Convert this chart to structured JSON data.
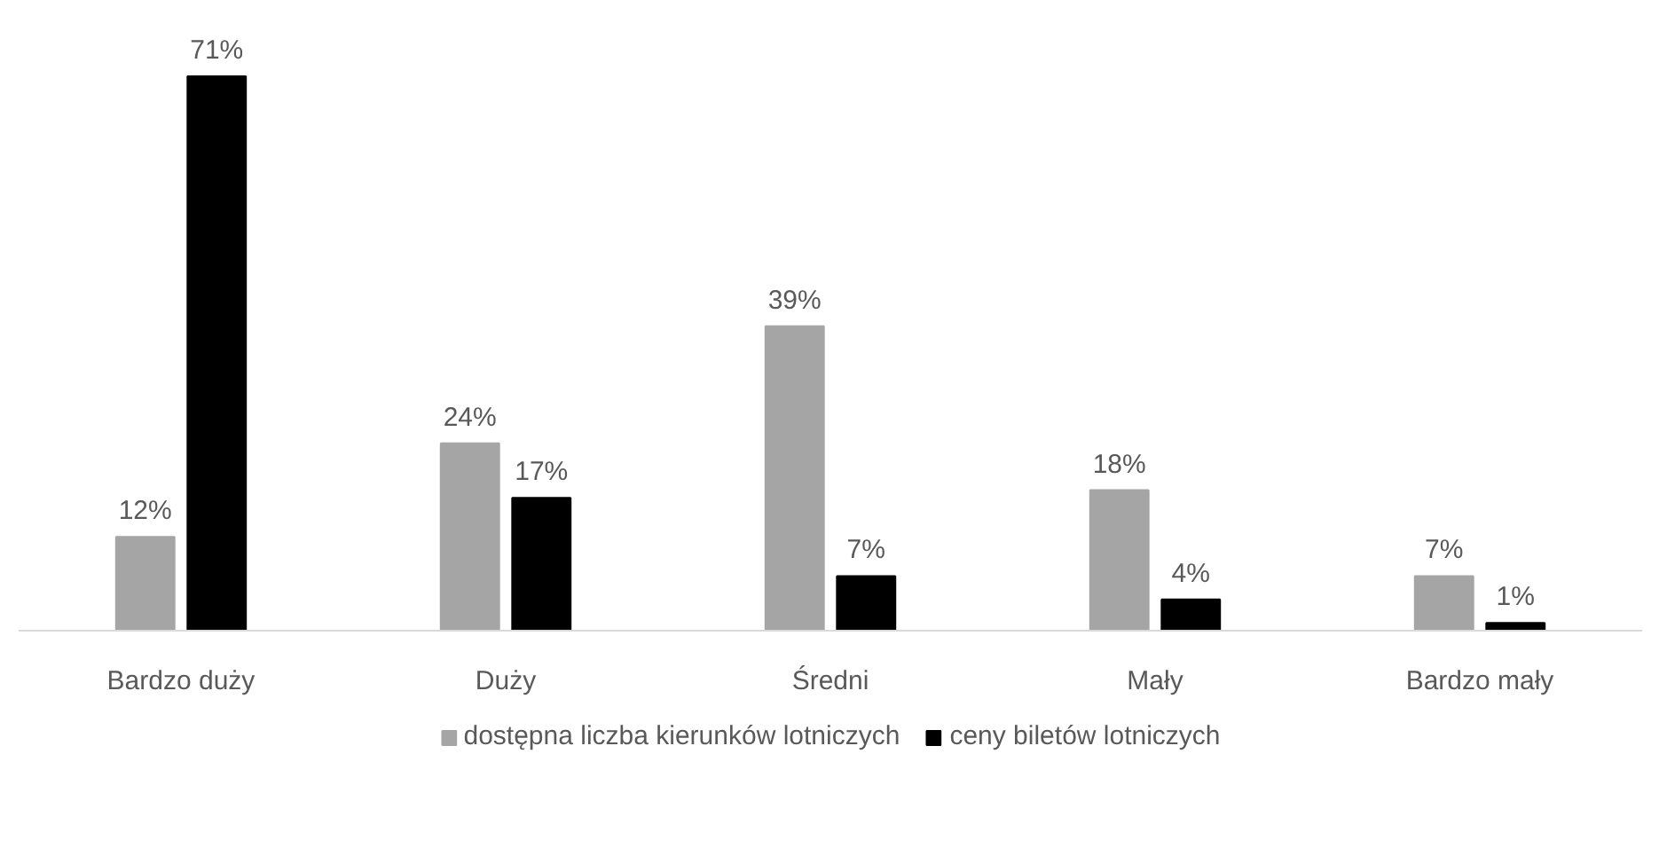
{
  "chart_data": {
    "type": "bar",
    "categories": [
      "Bardzo duży",
      "Duży",
      "Średni",
      "Mały",
      "Bardzo mały"
    ],
    "series": [
      {
        "name": "dostępna liczba kierunków lotniczych",
        "color": "#a5a5a5",
        "values": [
          12,
          24,
          39,
          18,
          7
        ],
        "value_labels": [
          "12%",
          "24%",
          "39%",
          "18%",
          "7%"
        ]
      },
      {
        "name": "ceny biletów lotniczych",
        "color": "#000000",
        "values": [
          71,
          17,
          7,
          4,
          1
        ],
        "value_labels": [
          "71%",
          "17%",
          "7%",
          "4%",
          "1%"
        ]
      }
    ],
    "legend": "bottom"
  }
}
